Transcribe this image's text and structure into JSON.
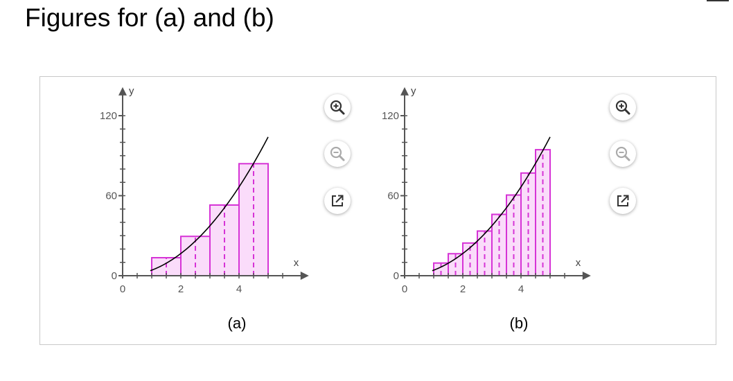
{
  "page": {
    "title": "Figures for (a) and (b)"
  },
  "figures": [
    {
      "caption": "(a)",
      "tools": {
        "zoom_in": "zoom-in-icon",
        "zoom_out": "zoom-out-icon",
        "popout": "external-link-icon"
      }
    },
    {
      "caption": "(b)",
      "tools": {
        "zoom_in": "zoom-in-icon",
        "zoom_out": "zoom-out-icon",
        "popout": "external-link-icon"
      }
    }
  ],
  "colors": {
    "bar_fill": "#fadcfa",
    "bar_stroke": "#d633d6",
    "curve": "#000000",
    "axis": "#555555",
    "zoom_in_icon": "#333333",
    "zoom_out_icon": "#aaaaaa"
  },
  "chart_data": [
    {
      "type": "bar",
      "xlabel": "x",
      "ylabel": "y",
      "xlim": [
        0,
        6.4
      ],
      "ylim": [
        0,
        130
      ],
      "x_ticks": [
        0,
        2,
        4
      ],
      "y_ticks": [
        0,
        60,
        120
      ],
      "bar_width": 1,
      "bars": [
        {
          "x0": 1,
          "x1": 2,
          "height": 13.5
        },
        {
          "x0": 2,
          "x1": 3,
          "height": 29.5
        },
        {
          "x0": 3,
          "x1": 4,
          "height": 53
        },
        {
          "x0": 4,
          "x1": 5,
          "height": 84
        }
      ],
      "midlines": [
        1.5,
        2.5,
        3.5,
        4.5
      ],
      "curve": {
        "x_start": 1,
        "x_end": 5,
        "x_max": 5.0,
        "y_at_max": 104,
        "formula": "y = 4 * x^2 approx"
      }
    },
    {
      "type": "bar",
      "xlabel": "x",
      "ylabel": "y",
      "xlim": [
        0,
        6.4
      ],
      "ylim": [
        0,
        130
      ],
      "x_ticks": [
        0,
        2,
        4
      ],
      "y_ticks": [
        0,
        60,
        120
      ],
      "bar_width": 0.5,
      "bars": [
        {
          "x0": 1.0,
          "x1": 1.5,
          "height": 9.5
        },
        {
          "x0": 1.5,
          "x1": 2.0,
          "height": 16.5
        },
        {
          "x0": 2.0,
          "x1": 2.5,
          "height": 24.5
        },
        {
          "x0": 2.5,
          "x1": 3.0,
          "height": 33.5
        },
        {
          "x0": 3.0,
          "x1": 3.5,
          "height": 46
        },
        {
          "x0": 3.5,
          "x1": 4.0,
          "height": 60.5
        },
        {
          "x0": 4.0,
          "x1": 4.5,
          "height": 77
        },
        {
          "x0": 4.5,
          "x1": 5.0,
          "height": 94.5
        }
      ],
      "midlines": [
        1.25,
        1.75,
        2.25,
        2.75,
        3.25,
        3.75,
        4.25,
        4.75
      ],
      "curve": {
        "x_start": 1,
        "x_end": 5,
        "x_max": 5.0,
        "y_at_max": 104,
        "formula": "y = 4 * x^2 approx"
      }
    }
  ]
}
